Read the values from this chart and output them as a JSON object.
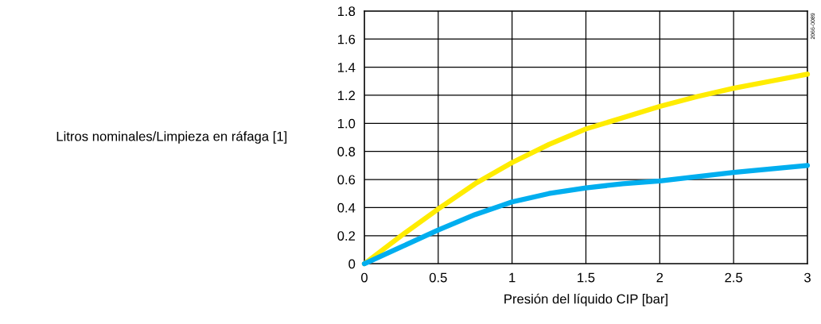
{
  "chart_data": {
    "type": "line",
    "xlabel": "Presión del líquido CIP [bar]",
    "ylabel": "Litros nominales/Limpieza en ráfaga [1]",
    "annotations": [
      "2066-0089"
    ],
    "series": [
      {
        "color": "#ffec00",
        "x": [
          0,
          0.25,
          0.5,
          0.75,
          1,
          1.25,
          1.5,
          1.75,
          2,
          2.25,
          2.5,
          2.75,
          3
        ],
        "values": [
          0,
          0.2,
          0.39,
          0.57,
          0.72,
          0.85,
          0.96,
          1.04,
          1.12,
          1.19,
          1.25,
          1.3,
          1.35
        ]
      },
      {
        "color": "#00aeef",
        "x": [
          0,
          0.25,
          0.5,
          0.75,
          1,
          1.25,
          1.5,
          1.75,
          2,
          2.5,
          3
        ],
        "values": [
          0,
          0.12,
          0.24,
          0.35,
          0.44,
          0.5,
          0.54,
          0.57,
          0.59,
          0.65,
          0.7
        ]
      }
    ],
    "xlim": [
      0,
      3
    ],
    "xticks": [
      0,
      0.5,
      1,
      1.5,
      2,
      2.5,
      3
    ],
    "ylim": [
      0,
      1.8
    ],
    "yticks": [
      0,
      {
        "value": 0.2,
        "label": "0.2"
      },
      {
        "value": 0.4,
        "label": "0.4"
      },
      {
        "value": 0.6,
        "label": "0.6"
      },
      {
        "value": 0.8,
        "label": "0.8"
      },
      {
        "value": 1.0,
        "label": "1.0"
      },
      {
        "value": 1.2,
        "label": "1.2"
      },
      {
        "value": 1.4,
        "label": "1.4"
      },
      {
        "value": 1.6,
        "label": "1.6"
      },
      {
        "value": 1.8,
        "label": "1.8"
      }
    ],
    "grid": true,
    "legend": false,
    "marker": "none",
    "line_style": "solid"
  }
}
